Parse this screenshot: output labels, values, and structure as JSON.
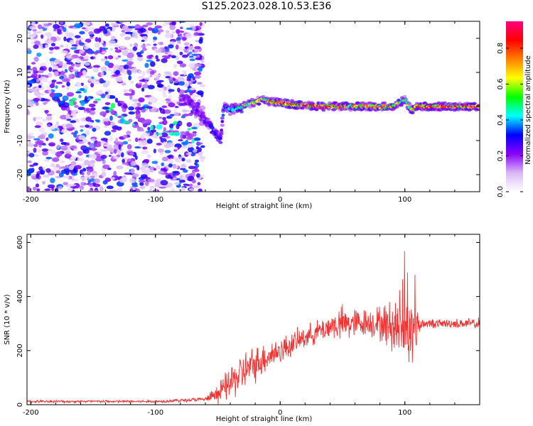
{
  "title": "S125.2023.028.10.53.E36",
  "chart_data": [
    {
      "type": "heatmap",
      "title": "",
      "xlabel": "Height of straight line (km)",
      "ylabel": "Frequency (Hz)",
      "xlim": [
        -203,
        160
      ],
      "ylim": [
        -25,
        25
      ],
      "xticks": [
        -200,
        -100,
        0,
        100
      ],
      "yticks": [
        -20,
        -10,
        0,
        10,
        20
      ],
      "colorbar": {
        "label": "Normalized spectral amplitude",
        "range": [
          0,
          0.95
        ],
        "ticks": [
          0.0,
          0.2,
          0.4,
          0.6,
          0.8
        ],
        "colors": [
          "#ffffff",
          "#d9b8f5",
          "#8a00ff",
          "#0000ff",
          "#00ffff",
          "#00ff00",
          "#ffff00",
          "#ff8000",
          "#ff0000",
          "#ff0080"
        ]
      },
      "noise_region": {
        "x": [
          -203,
          -62
        ],
        "freq": [
          -25,
          25
        ]
      },
      "ridge": {
        "x": [
          -75,
          -65,
          -55,
          -48,
          -45,
          -40,
          -30,
          -15,
          0,
          30,
          60,
          90,
          100,
          105,
          110,
          130,
          160
        ],
        "freq": [
          2,
          -2,
          -6,
          -10,
          0,
          -1,
          0,
          2,
          1,
          0,
          0,
          0,
          2,
          -1,
          0,
          0,
          0
        ],
        "peak_amplitude": [
          0.25,
          0.3,
          0.35,
          0.35,
          0.4,
          0.5,
          0.6,
          0.7,
          0.85,
          0.9,
          0.8,
          0.75,
          0.6,
          0.7,
          0.9,
          0.9,
          0.85
        ]
      }
    },
    {
      "type": "line",
      "title": "",
      "xlabel": "Height of straight line (km)",
      "ylabel": "SNR (10 * v/v)",
      "xlim": [
        -203,
        160
      ],
      "ylim": [
        0,
        630
      ],
      "xticks": [
        -200,
        -100,
        0,
        100
      ],
      "yticks": [
        0,
        200,
        400,
        600
      ],
      "series_color": "#ee3333",
      "envelope": {
        "x": [
          -203,
          -100,
          -60,
          -50,
          -40,
          -30,
          -20,
          -10,
          0,
          10,
          20,
          30,
          40,
          50,
          60,
          70,
          80,
          90,
          100,
          105,
          110,
          115,
          130,
          160
        ],
        "level": [
          12,
          12,
          20,
          40,
          80,
          120,
          150,
          180,
          200,
          225,
          250,
          270,
          290,
          300,
          300,
          305,
          300,
          290,
          280,
          250,
          300,
          300,
          300,
          300
        ],
        "jitter": [
          6,
          6,
          10,
          40,
          80,
          90,
          80,
          70,
          60,
          55,
          50,
          50,
          60,
          80,
          70,
          60,
          80,
          120,
          150,
          200,
          80,
          20,
          20,
          25
        ]
      }
    }
  ]
}
